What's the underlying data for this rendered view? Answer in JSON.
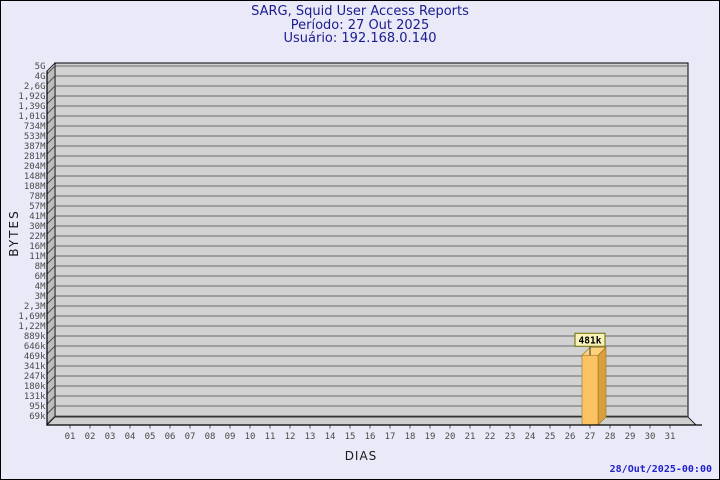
{
  "header": {
    "line1": "SARG, Squid User Access Reports",
    "line2": "Período: 27 Out 2025",
    "line3": "Usuário: 192.168.0.140"
  },
  "footer": {
    "timestamp": "28/Out/2025-00:00"
  },
  "chart_data": {
    "type": "bar",
    "style": "3d",
    "title": "SARG, Squid User Access Reports",
    "subtitle_period": "Período: 27 Out 2025",
    "subtitle_user": "Usuário: 192.168.0.140",
    "xlabel": "DIAS",
    "ylabel": "BYTES",
    "y_scale": "log",
    "grid": true,
    "ylim_top": 5000000000,
    "ylim_bottom": 69000,
    "y_tick_labels": [
      "5G",
      "4G",
      "2,6G",
      "1,92G",
      "1,39G",
      "1,01G",
      "734M",
      "533M",
      "387M",
      "281M",
      "204M",
      "148M",
      "108M",
      "78M",
      "57M",
      "41M",
      "30M",
      "22M",
      "16M",
      "11M",
      "8M",
      "6M",
      "4M",
      "3M",
      "2,3M",
      "1,69M",
      "1,22M",
      "889k",
      "646k",
      "469k",
      "341k",
      "247k",
      "180k",
      "131k",
      "95k",
      "69k"
    ],
    "categories": [
      "01",
      "02",
      "03",
      "04",
      "05",
      "06",
      "07",
      "08",
      "09",
      "10",
      "11",
      "12",
      "13",
      "14",
      "15",
      "16",
      "17",
      "18",
      "19",
      "20",
      "21",
      "22",
      "23",
      "24",
      "25",
      "26",
      "27",
      "28",
      "29",
      "30",
      "31"
    ],
    "values": [
      null,
      null,
      null,
      null,
      null,
      null,
      null,
      null,
      null,
      null,
      null,
      null,
      null,
      null,
      null,
      null,
      null,
      null,
      null,
      null,
      null,
      null,
      null,
      null,
      null,
      null,
      481000,
      null,
      null,
      null,
      null
    ],
    "value_labels": [
      null,
      null,
      null,
      null,
      null,
      null,
      null,
      null,
      null,
      null,
      null,
      null,
      null,
      null,
      null,
      null,
      null,
      null,
      null,
      null,
      null,
      null,
      null,
      null,
      null,
      null,
      "481k",
      null,
      null,
      null,
      null
    ],
    "colors": {
      "title_text": "#1c1c8e",
      "timestamp_text": "#2222cc",
      "plot_bg": "#d2d2d2",
      "grid_line": "#6a6a6a",
      "wall": "#bdbdbd",
      "floor": "#cfcfcf",
      "axis_line": "#000000",
      "tick_text": "#4a4a4a",
      "bar_face": "#fcc364",
      "bar_side": "#d89f3e",
      "bar_top": "#fdd27f",
      "bar_edge": "#9a7426",
      "label_box_bg": "#f8f2b8",
      "label_box_border": "#6b6b00",
      "label_text": "#000000"
    }
  }
}
